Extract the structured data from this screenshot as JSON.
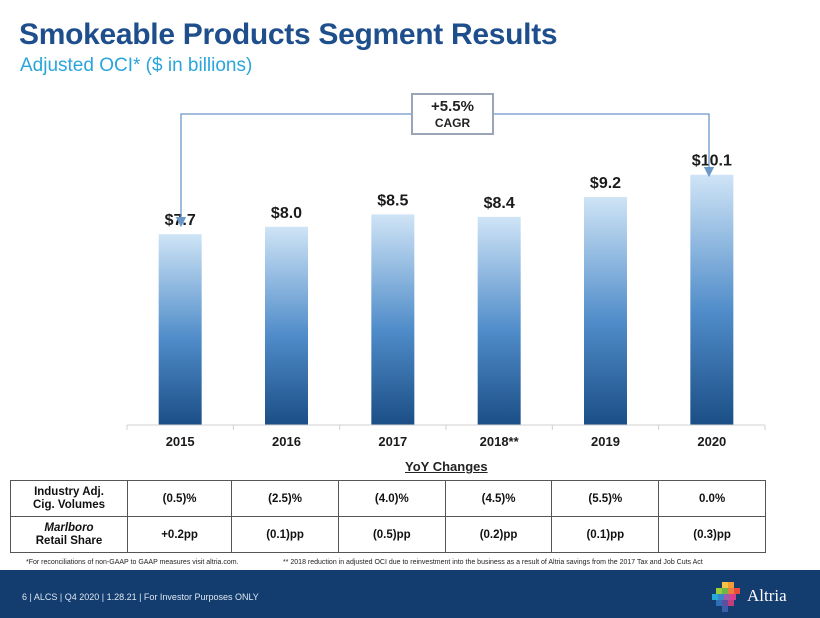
{
  "header": {
    "title": "Smokeable Products Segment Results",
    "subtitle": "Adjusted OCI* ($ in billions)"
  },
  "cagr": {
    "value": "+5.5%",
    "label": "CAGR"
  },
  "chart_data": {
    "type": "bar",
    "title": "Smokeable Products Segment Results",
    "subtitle": "Adjusted OCI* ($ in billions)",
    "categories": [
      "2015",
      "2016",
      "2017",
      "2018**",
      "2019",
      "2020"
    ],
    "values": [
      7.7,
      8.0,
      8.5,
      8.4,
      9.2,
      10.1
    ],
    "value_labels": [
      "$7.7",
      "$8.0",
      "$8.5",
      "$8.4",
      "$9.2",
      "$10.1"
    ],
    "xlabel": "",
    "ylabel": "",
    "ylim": [
      0,
      11.3
    ],
    "grid": false,
    "annotation": "+5.5% CAGR",
    "colors": {
      "bar_top": "#cfe4f6",
      "bar_bottom": "#1b4e86",
      "arrow": "#6a98c8"
    }
  },
  "yoy": {
    "title": "YoY Changes",
    "rows": [
      {
        "label_line1": "Industry Adj.",
        "label_line2": "Cig. Volumes",
        "values": [
          "(0.5)%",
          "(2.5)%",
          "(4.0)%",
          "(4.5)%",
          "(5.5)%",
          "0.0%"
        ]
      },
      {
        "label_line1": "Marlboro",
        "label_line2": "Retail Share",
        "values": [
          "+0.2pp",
          "(0.1)pp",
          "(0.5)pp",
          "(0.2)pp",
          "(0.1)pp",
          "(0.3)pp"
        ]
      }
    ]
  },
  "footnotes": {
    "left": "*For reconciliations of non-GAAP to GAAP measures visit altria.com.",
    "right": "** 2018 reduction in adjusted OCI due to reinvestment into the business as a result of Altria savings from the 2017 Tax and Job Cuts Act"
  },
  "footer": {
    "text": "6 | ALCS | Q4 2020 | 1.28.21 | For Investor Purposes ONLY",
    "logo_text": "Altria",
    "background": "#133d6e"
  }
}
